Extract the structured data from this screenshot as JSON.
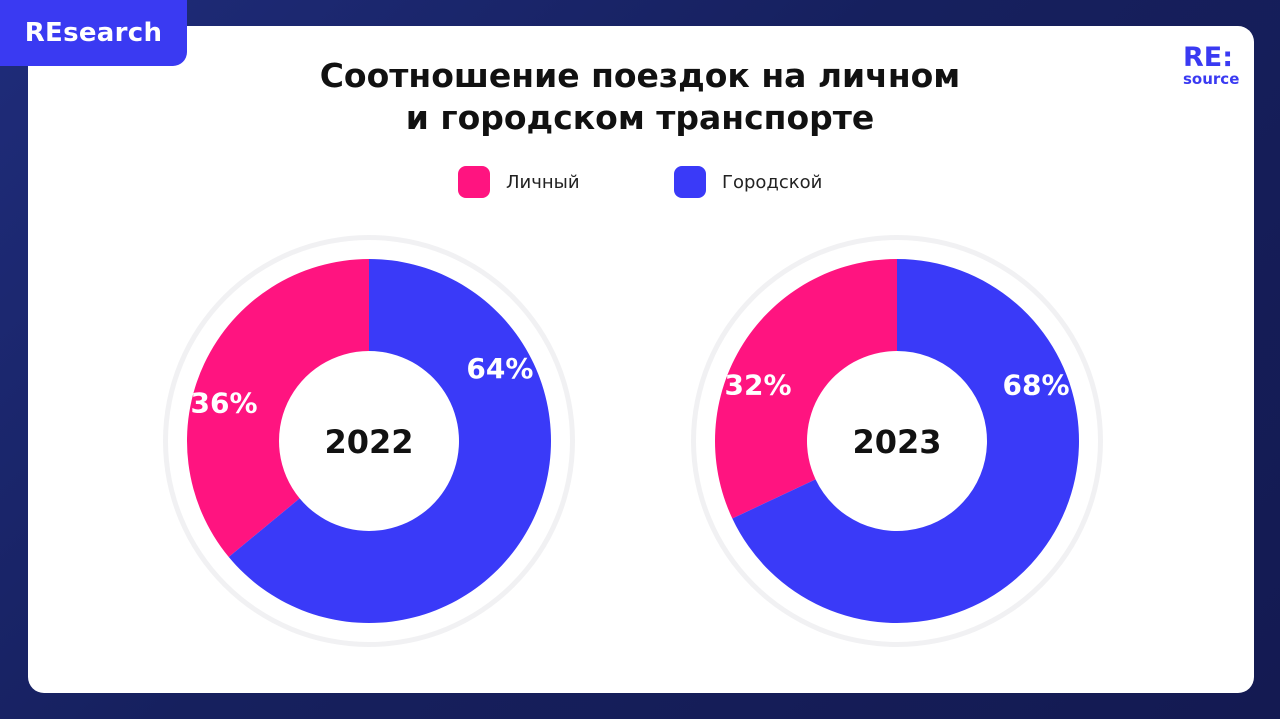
{
  "brand": {
    "tab_label": "REsearch",
    "logo_top": "RE:",
    "logo_bottom": "source"
  },
  "colors": {
    "personal": "#ff1480",
    "public": "#3a3af8",
    "ring": "#f1f1f3"
  },
  "chart_data": {
    "type": "pie",
    "title_lines": [
      "Соотношение поездок на личном",
      "и городском транспорте"
    ],
    "legend": [
      {
        "name": "Личный",
        "color": "#ff1480"
      },
      {
        "name": "Городской",
        "color": "#3a3af8"
      }
    ],
    "charts": [
      {
        "center_label": "2022",
        "slices": [
          {
            "name": "Личный",
            "value": 36,
            "label": "36%"
          },
          {
            "name": "Городской",
            "value": 64,
            "label": "64%"
          }
        ]
      },
      {
        "center_label": "2023",
        "slices": [
          {
            "name": "Личный",
            "value": 32,
            "label": "32%"
          },
          {
            "name": "Городской",
            "value": 68,
            "label": "68%"
          }
        ]
      }
    ]
  }
}
